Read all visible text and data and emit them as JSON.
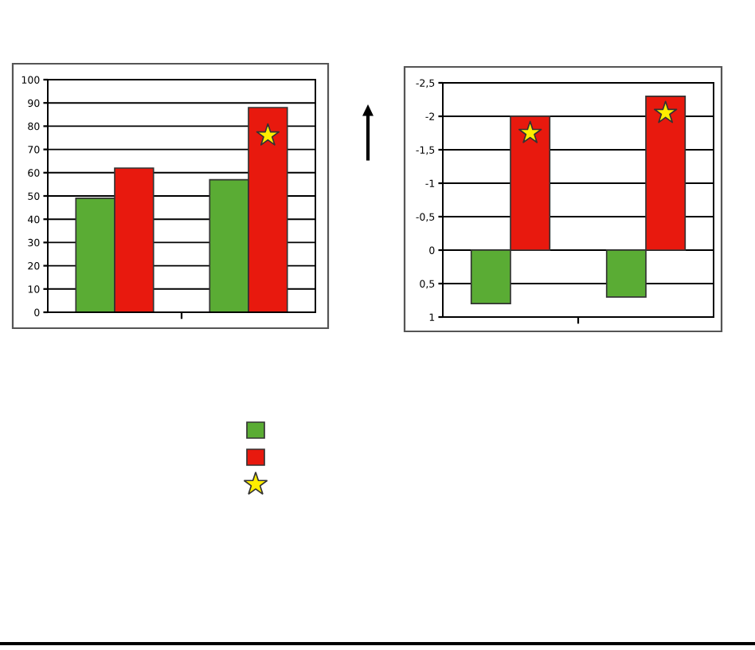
{
  "chart_data": [
    {
      "type": "bar",
      "categories": [
        null,
        null
      ],
      "ylim": [
        0,
        100
      ],
      "yticks": [
        0,
        10,
        20,
        30,
        40,
        50,
        60,
        70,
        80,
        90,
        100
      ],
      "grid": "y",
      "series": [
        {
          "color": "#5aac34",
          "values": [
            49,
            57
          ]
        },
        {
          "color": "#e8190e",
          "values": [
            62,
            88
          ]
        },
        {
          "type": "scatter",
          "marker": "star",
          "color": "#ffee00",
          "values": [
            null,
            76
          ]
        }
      ]
    },
    {
      "type": "bar",
      "categories": [
        null,
        null
      ],
      "ylim": [
        1,
        -2.5
      ],
      "yticks": [
        {
          "value": -2.5,
          "label": "-2,5"
        },
        -2,
        {
          "value": -1.5,
          "label": "-1,5"
        },
        -1,
        {
          "value": -0.5,
          "label": "-0,5"
        },
        0,
        {
          "value": 0.5,
          "label": "0,5"
        },
        1
      ],
      "grid": "y",
      "series": [
        {
          "color": "#5aac34",
          "values": [
            0.8,
            0.7
          ]
        },
        {
          "color": "#e8190e",
          "values": [
            -2.0,
            -2.3
          ]
        },
        {
          "type": "scatter",
          "marker": "star",
          "color": "#ffee00",
          "values": [
            -1.75,
            -2.05
          ]
        }
      ]
    }
  ]
}
